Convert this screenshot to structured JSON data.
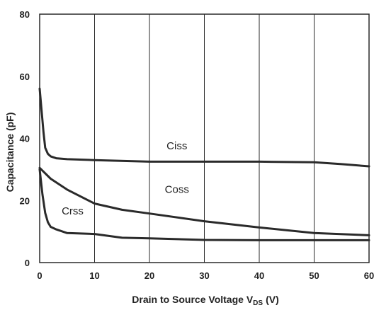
{
  "chart_data": {
    "type": "line",
    "xlabel": "Drain to Source Voltage V",
    "xlabel_subscript": "DS",
    "xlabel_unit": "(V)",
    "ylabel": "Capacitance (pF)",
    "xlim": [
      0,
      60
    ],
    "ylim": [
      0,
      80
    ],
    "x_ticks": [
      "0",
      "10",
      "20",
      "30",
      "40",
      "50",
      "60"
    ],
    "y_ticks": [
      "0",
      "20",
      "40",
      "60",
      "80"
    ],
    "grid": "vertical",
    "series": [
      {
        "name": "Ciss",
        "x": [
          0,
          0.3,
          0.7,
          1,
          1.5,
          2,
          3,
          5,
          10,
          20,
          30,
          40,
          50,
          55,
          60
        ],
        "y": [
          56,
          50,
          42,
          37,
          35,
          34.2,
          33.6,
          33.3,
          33,
          32.5,
          32.5,
          32.5,
          32.3,
          31.7,
          31
        ]
      },
      {
        "name": "Coss",
        "x": [
          0,
          2,
          5,
          10,
          15,
          20,
          30,
          40,
          50,
          60
        ],
        "y": [
          30.5,
          27,
          23.5,
          19,
          17,
          15.8,
          13.3,
          11.3,
          9.5,
          8.8
        ]
      },
      {
        "name": "Crss",
        "x": [
          0,
          0.5,
          1,
          1.5,
          2,
          3,
          5,
          10,
          15,
          20,
          30,
          40,
          50,
          60
        ],
        "y": [
          30,
          22,
          16,
          13,
          11.5,
          10.7,
          9.5,
          9.2,
          8,
          7.8,
          7.3,
          7.2,
          7.2,
          7.2
        ]
      }
    ]
  }
}
